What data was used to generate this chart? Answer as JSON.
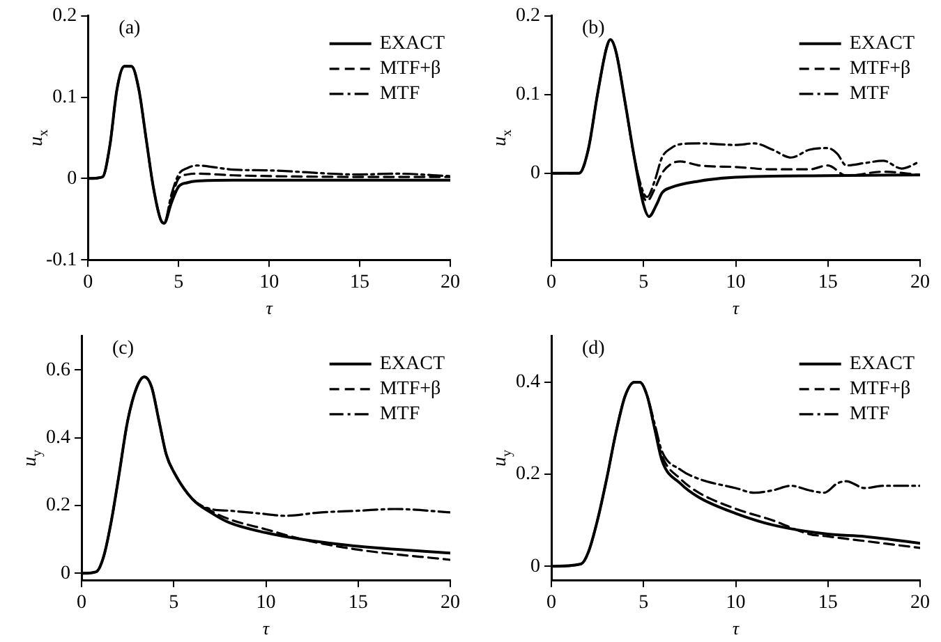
{
  "chart_data": [
    {
      "type": "line",
      "title": "(a)",
      "xlabel": "τ",
      "ylabel": "u$_{x}$",
      "xlim": [
        0,
        20
      ],
      "xticks": [
        0,
        5,
        10,
        15,
        20
      ],
      "ylim": [
        -0.1,
        0.2
      ],
      "yticks": [
        -0.1,
        0,
        0.1,
        0.2
      ],
      "grid": false,
      "legend": "top right",
      "marker": "none",
      "series": [
        {
          "name": "EXACT",
          "color": "#000000",
          "line_style": "solid",
          "x": [
            0,
            0.8,
            1.2,
            1.6,
            2,
            2.4,
            2.8,
            3.2,
            3.6,
            4,
            4.2,
            4.6,
            5,
            5.5,
            6,
            8,
            10,
            15,
            20
          ],
          "values": [
            0,
            0.002,
            0.04,
            0.11,
            0.138,
            0.138,
            0.11,
            0.05,
            -0.01,
            -0.05,
            -0.055,
            -0.03,
            -0.01,
            -0.005,
            -0.003,
            -0.002,
            -0.002,
            -0.002,
            -0.002
          ]
        },
        {
          "name": "MTF+β",
          "color": "#000000",
          "line_style": "dashed",
          "x": [
            0,
            0.8,
            1.2,
            1.6,
            2,
            2.4,
            2.8,
            3.2,
            3.6,
            4,
            4.2,
            4.6,
            5,
            5.5,
            6,
            8,
            10,
            15,
            20
          ],
          "values": [
            0,
            0.002,
            0.04,
            0.11,
            0.138,
            0.138,
            0.11,
            0.05,
            -0.01,
            -0.05,
            -0.055,
            -0.025,
            0,
            0.005,
            0.006,
            0.004,
            0.003,
            0.002,
            0.002
          ]
        },
        {
          "name": "MTF",
          "color": "#000000",
          "line_style": "dashdot",
          "x": [
            0,
            0.8,
            1.2,
            1.6,
            2,
            2.4,
            2.8,
            3.2,
            3.6,
            4,
            4.2,
            4.6,
            5,
            5.5,
            6,
            8,
            10,
            15,
            17,
            20
          ],
          "values": [
            0,
            0.002,
            0.04,
            0.11,
            0.138,
            0.138,
            0.11,
            0.05,
            -0.01,
            -0.05,
            -0.055,
            -0.02,
            0.005,
            0.013,
            0.016,
            0.011,
            0.01,
            0.005,
            0.006,
            0.003
          ]
        }
      ]
    },
    {
      "type": "line",
      "title": "(b)",
      "xlabel": "τ",
      "ylabel": "u$_{x}$",
      "xlim": [
        0,
        20
      ],
      "xticks": [
        0,
        5,
        10,
        15,
        20
      ],
      "ylim": [
        -0.11,
        0.2
      ],
      "yticks": [
        0,
        0.1,
        0.2
      ],
      "grid": false,
      "legend": "top right",
      "marker": "none",
      "series": [
        {
          "name": "EXACT",
          "color": "#000000",
          "line_style": "solid",
          "x": [
            0,
            1.5,
            2,
            2.5,
            3,
            3.2,
            3.5,
            4,
            4.5,
            5,
            5.3,
            5.7,
            6,
            6.5,
            8,
            10,
            15,
            20
          ],
          "values": [
            0,
            0,
            0.03,
            0.1,
            0.16,
            0.17,
            0.155,
            0.09,
            0.02,
            -0.04,
            -0.055,
            -0.04,
            -0.025,
            -0.018,
            -0.01,
            -0.005,
            -0.003,
            -0.002
          ]
        },
        {
          "name": "MTF+β",
          "color": "#000000",
          "line_style": "dashed",
          "x": [
            0,
            1.5,
            2,
            2.5,
            3,
            3.2,
            3.5,
            4,
            4.5,
            5,
            5.2,
            5.6,
            6,
            6.5,
            7,
            8,
            10,
            12,
            14,
            15,
            16,
            18,
            20
          ],
          "values": [
            0,
            0,
            0.03,
            0.1,
            0.16,
            0.17,
            0.155,
            0.09,
            0.02,
            -0.03,
            -0.035,
            -0.02,
            0,
            0.012,
            0.015,
            0.01,
            0.008,
            0.005,
            0.005,
            0.01,
            -0.003,
            0.002,
            -0.002
          ]
        },
        {
          "name": "MTF",
          "color": "#000000",
          "line_style": "dashdot",
          "x": [
            0,
            1.5,
            2,
            2.5,
            3,
            3.2,
            3.5,
            4,
            4.5,
            5,
            5.2,
            5.6,
            6,
            6.5,
            7,
            8,
            10,
            11,
            12,
            13,
            14,
            15,
            15.5,
            16,
            17,
            18,
            19,
            20
          ],
          "values": [
            0,
            0,
            0.03,
            0.1,
            0.16,
            0.17,
            0.155,
            0.09,
            0.02,
            -0.025,
            -0.03,
            -0.01,
            0.02,
            0.032,
            0.037,
            0.038,
            0.036,
            0.038,
            0.03,
            0.02,
            0.03,
            0.032,
            0.025,
            0.01,
            0.013,
            0.016,
            0.006,
            0.015
          ]
        }
      ]
    },
    {
      "type": "line",
      "title": "(c)",
      "xlabel": "τ",
      "ylabel": "u$_{y}$",
      "xlim": [
        0,
        20
      ],
      "xticks": [
        0,
        5,
        10,
        15,
        20
      ],
      "ylim": [
        -0.02,
        0.7
      ],
      "yticks": [
        0,
        0.2,
        0.4,
        0.6
      ],
      "grid": false,
      "legend": "top right",
      "marker": "none",
      "series": [
        {
          "name": "EXACT",
          "color": "#000000",
          "line_style": "solid",
          "x": [
            0,
            0.8,
            1.2,
            1.6,
            2,
            2.5,
            3,
            3.4,
            3.8,
            4.2,
            4.6,
            5,
            6,
            7,
            8,
            10,
            12,
            15,
            20
          ],
          "values": [
            0,
            0.005,
            0.05,
            0.15,
            0.28,
            0.45,
            0.55,
            0.58,
            0.55,
            0.45,
            0.35,
            0.3,
            0.22,
            0.18,
            0.15,
            0.12,
            0.1,
            0.08,
            0.06
          ]
        },
        {
          "name": "MTF+β",
          "color": "#000000",
          "line_style": "dashed",
          "x": [
            0,
            0.8,
            1.2,
            1.6,
            2,
            2.5,
            3,
            3.4,
            3.8,
            4.2,
            4.6,
            5,
            6,
            7,
            8,
            10,
            12,
            15,
            20
          ],
          "values": [
            0,
            0.005,
            0.05,
            0.15,
            0.28,
            0.45,
            0.55,
            0.58,
            0.55,
            0.45,
            0.35,
            0.3,
            0.22,
            0.185,
            0.16,
            0.13,
            0.1,
            0.07,
            0.04
          ]
        },
        {
          "name": "MTF",
          "color": "#000000",
          "line_style": "dashdot",
          "x": [
            0,
            0.8,
            1.2,
            1.6,
            2,
            2.5,
            3,
            3.4,
            3.8,
            4.2,
            4.6,
            5,
            6,
            7,
            8,
            10,
            11,
            13,
            15,
            17,
            20
          ],
          "values": [
            0,
            0.005,
            0.05,
            0.15,
            0.28,
            0.45,
            0.55,
            0.58,
            0.55,
            0.45,
            0.35,
            0.3,
            0.22,
            0.19,
            0.185,
            0.175,
            0.17,
            0.18,
            0.185,
            0.19,
            0.18
          ]
        }
      ]
    },
    {
      "type": "line",
      "title": "(d)",
      "xlabel": "τ",
      "ylabel": "u$_{y}$",
      "xlim": [
        0,
        20
      ],
      "xticks": [
        0,
        5,
        10,
        15,
        20
      ],
      "ylim": [
        -0.03,
        0.5
      ],
      "yticks": [
        0,
        0.2,
        0.4
      ],
      "grid": false,
      "legend": "top right",
      "marker": "none",
      "series": [
        {
          "name": "EXACT",
          "color": "#000000",
          "line_style": "solid",
          "x": [
            0,
            1.6,
            2,
            2.5,
            3,
            3.5,
            4,
            4.5,
            4.8,
            5.2,
            5.6,
            6,
            7,
            8,
            10,
            12,
            15,
            17,
            20
          ],
          "values": [
            0,
            0.005,
            0.03,
            0.1,
            0.19,
            0.29,
            0.37,
            0.4,
            0.4,
            0.37,
            0.3,
            0.23,
            0.18,
            0.15,
            0.115,
            0.09,
            0.07,
            0.065,
            0.05
          ]
        },
        {
          "name": "MTF+β",
          "color": "#000000",
          "line_style": "dashed",
          "x": [
            0,
            1.6,
            2,
            2.5,
            3,
            3.5,
            4,
            4.5,
            4.8,
            5.2,
            5.6,
            6,
            7,
            8,
            10,
            12,
            14,
            15,
            17,
            20
          ],
          "values": [
            0,
            0.005,
            0.03,
            0.1,
            0.19,
            0.29,
            0.37,
            0.4,
            0.4,
            0.37,
            0.3,
            0.24,
            0.19,
            0.16,
            0.125,
            0.1,
            0.07,
            0.065,
            0.055,
            0.04
          ]
        },
        {
          "name": "MTF",
          "color": "#000000",
          "line_style": "dashdot",
          "x": [
            0,
            1.6,
            2,
            2.5,
            3,
            3.5,
            4,
            4.5,
            4.8,
            5.2,
            5.6,
            6,
            7,
            8,
            10,
            11,
            12,
            13,
            14,
            14.8,
            15.5,
            16,
            17,
            18,
            20
          ],
          "values": [
            0,
            0.005,
            0.03,
            0.1,
            0.19,
            0.29,
            0.37,
            0.4,
            0.4,
            0.37,
            0.31,
            0.25,
            0.21,
            0.19,
            0.17,
            0.16,
            0.165,
            0.175,
            0.165,
            0.16,
            0.18,
            0.185,
            0.17,
            0.175,
            0.175
          ]
        }
      ]
    }
  ]
}
